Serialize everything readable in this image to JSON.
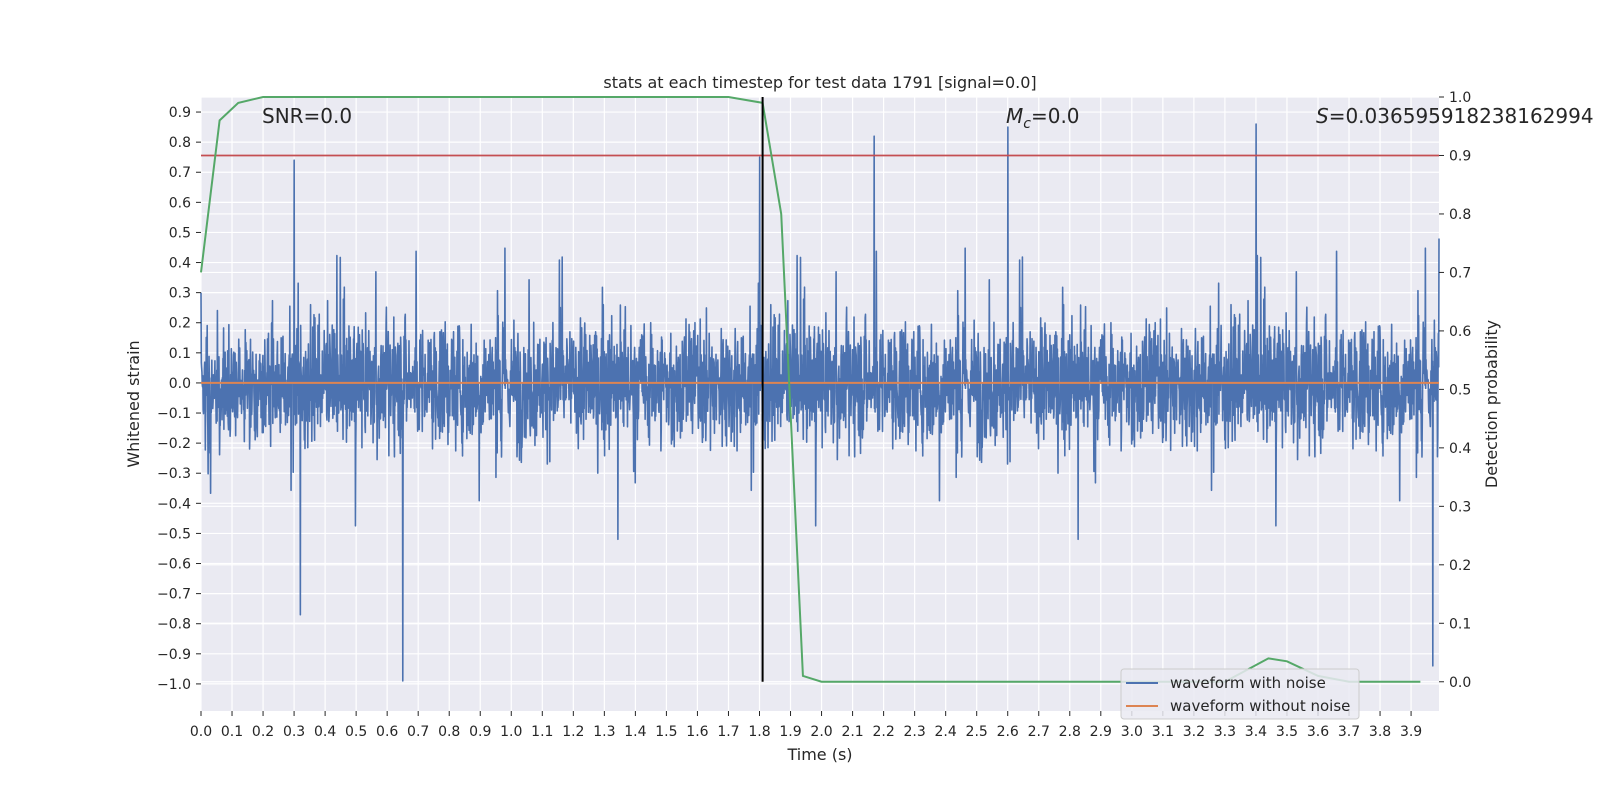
{
  "chart_data": {
    "type": "line",
    "title": "stats at each timestep for test data 1791 [signal=0.0]",
    "xlabel": "Time (s)",
    "ylabel": "Whitened strain",
    "ylabel_right": "Detection probability",
    "xlim": [
      0.0,
      3.99
    ],
    "ylim": [
      -1.09,
      0.95
    ],
    "ylim_right": [
      -0.05,
      1.0
    ],
    "x_ticks": [
      "0.0",
      "0.1",
      "0.2",
      "0.3",
      "0.4",
      "0.5",
      "0.6",
      "0.7",
      "0.8",
      "0.9",
      "1.0",
      "1.1",
      "1.2",
      "1.3",
      "1.4",
      "1.5",
      "1.6",
      "1.7",
      "1.8",
      "1.9",
      "2.0",
      "2.1",
      "2.2",
      "2.3",
      "2.4",
      "2.5",
      "2.6",
      "2.7",
      "2.8",
      "2.9",
      "3.0",
      "3.1",
      "3.2",
      "3.3",
      "3.4",
      "3.5",
      "3.6",
      "3.7",
      "3.8",
      "3.9"
    ],
    "y_ticks": [
      "0.9",
      "0.8",
      "0.7",
      "0.6",
      "0.5",
      "0.4",
      "0.3",
      "0.2",
      "0.1",
      "0.0",
      "−0.1",
      "−0.2",
      "−0.3",
      "−0.4",
      "−0.5",
      "−0.6",
      "−0.7",
      "−0.8",
      "−0.9",
      "−1.0"
    ],
    "y_ticks_right": [
      "1.0",
      "0.9",
      "0.8",
      "0.7",
      "0.6",
      "0.5",
      "0.4",
      "0.3",
      "0.2",
      "0.1",
      "0.0"
    ],
    "annotations": {
      "snr": "SNR=0.0",
      "mc_symbol": "M",
      "mc_sub": "c",
      "mc_value": "=0.0",
      "s_symbol": "S",
      "s_value": "=0.036595918238162994"
    },
    "grid": true,
    "legend_position": "lower-right",
    "series": [
      {
        "name": "waveform with noise",
        "color": "#4c72b0",
        "note_values": "dense noise trace; extreme samples listed",
        "x": [
          0.0,
          0.3,
          0.32,
          0.65,
          1.8,
          2.17,
          2.6,
          3.4,
          3.97,
          3.99
        ],
        "y": [
          0.3,
          0.74,
          -0.77,
          -0.99,
          0.75,
          0.82,
          0.85,
          0.86,
          -0.94,
          0.48
        ]
      },
      {
        "name": "waveform without noise",
        "color": "#dd8452",
        "x": [
          0.0,
          3.99
        ],
        "y": [
          0.0,
          0.0
        ]
      },
      {
        "name": "",
        "color": "#55a868",
        "axis": "right",
        "x": [
          0.0,
          0.06,
          0.12,
          0.2,
          0.3,
          1.0,
          1.7,
          1.81,
          1.87,
          1.94,
          2.0,
          2.1,
          3.3,
          3.44,
          3.5,
          3.6,
          3.7,
          3.93
        ],
        "y": [
          0.7,
          0.96,
          0.99,
          1.0,
          1.0,
          1.0,
          1.0,
          0.99,
          0.8,
          0.01,
          0.0,
          0.0,
          0.0,
          0.04,
          0.035,
          0.01,
          0.0,
          0.0
        ]
      }
    ],
    "threshold_line": {
      "y_right": 0.9,
      "color": "#c44e52"
    },
    "marker_line": {
      "x": 1.81,
      "color": "#000000"
    }
  }
}
